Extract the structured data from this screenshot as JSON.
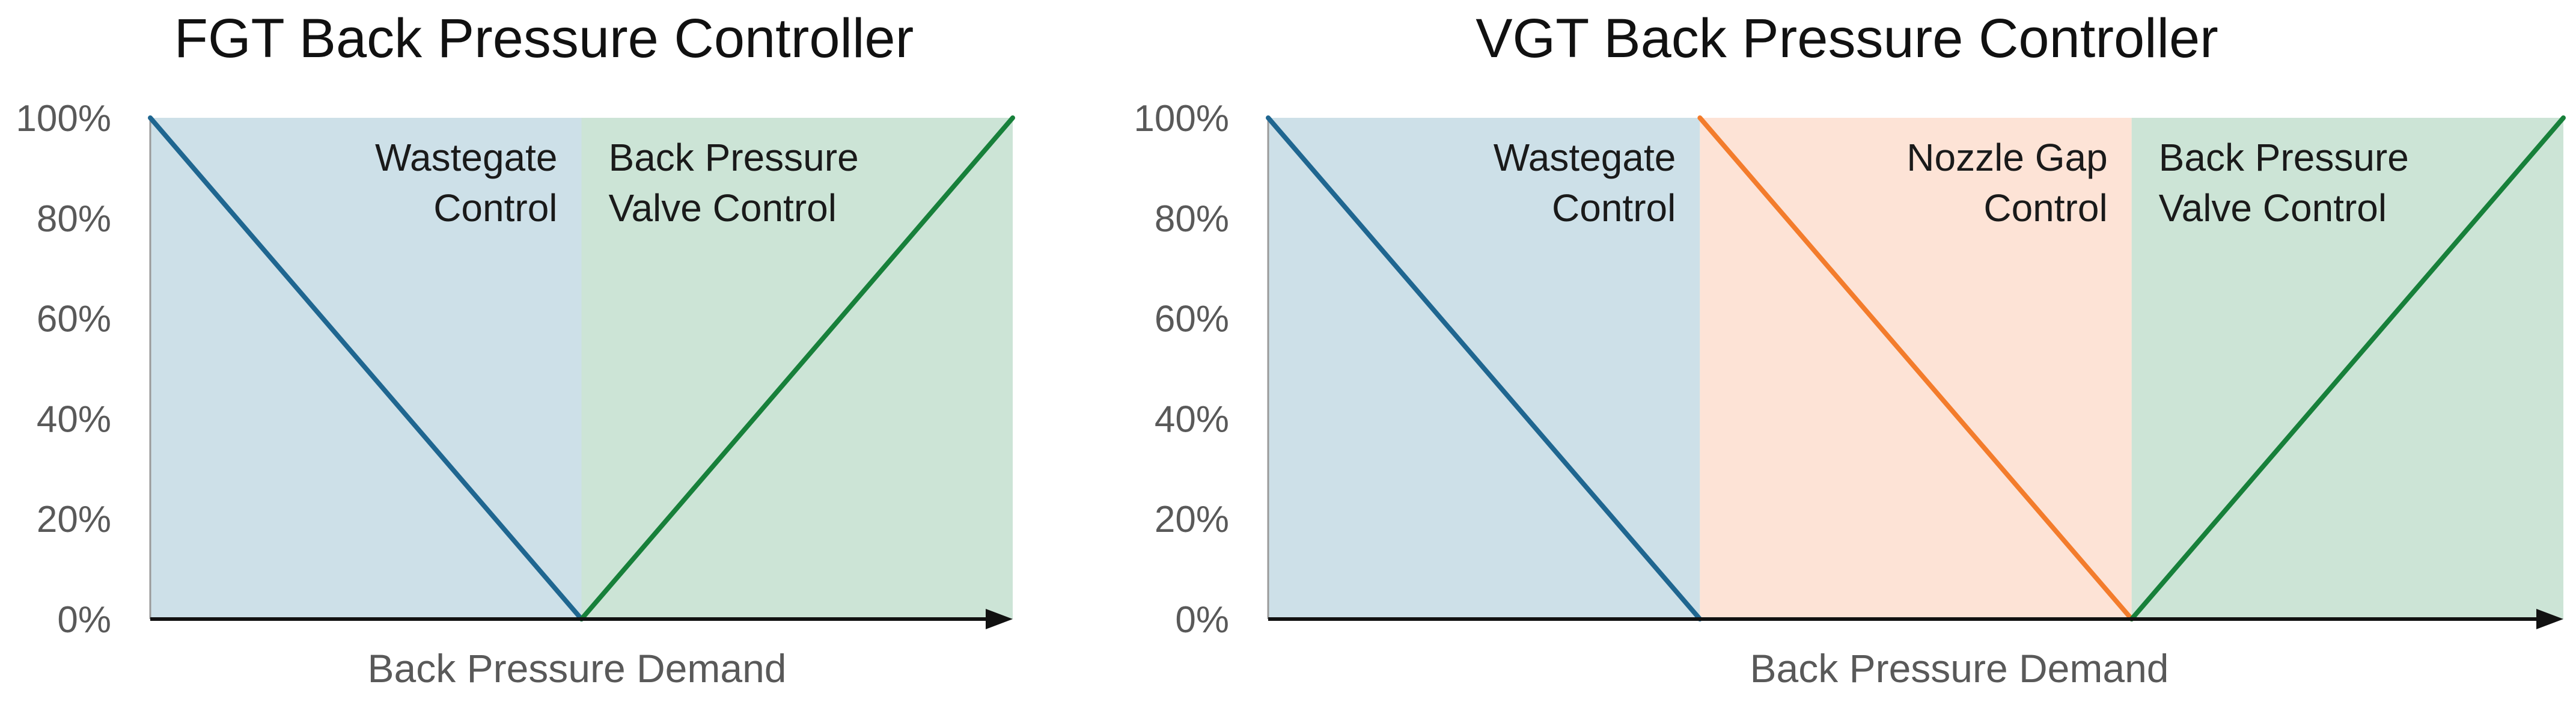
{
  "chart_data": [
    {
      "type": "line",
      "title": "FGT Back Pressure Controller",
      "xlabel": "Back Pressure Demand",
      "ylabel": "",
      "ylim": [
        0,
        100
      ],
      "xlim": [
        0,
        2
      ],
      "y_ticks": [
        "0%",
        "20%",
        "40%",
        "60%",
        "80%",
        "100%"
      ],
      "grid": false,
      "regions": [
        {
          "x": [
            0,
            1
          ],
          "label": [
            "Wastegate",
            "Control"
          ],
          "align": "right",
          "color": "#cde0e8"
        },
        {
          "x": [
            1,
            2
          ],
          "label": [
            "Back Pressure",
            "Valve Control"
          ],
          "align": "left",
          "color": "#cce4d6"
        }
      ],
      "series": [
        {
          "x": [
            0,
            1
          ],
          "y": [
            100,
            0
          ],
          "color": "#1f6690"
        },
        {
          "x": [
            1,
            2
          ],
          "y": [
            0,
            100
          ],
          "color": "#17803a"
        }
      ]
    },
    {
      "type": "line",
      "title": "VGT Back Pressure Controller",
      "xlabel": "Back Pressure Demand",
      "ylabel": "",
      "ylim": [
        0,
        100
      ],
      "xlim": [
        0,
        3
      ],
      "y_ticks": [
        "0%",
        "20%",
        "40%",
        "60%",
        "80%",
        "100%"
      ],
      "grid": false,
      "regions": [
        {
          "x": [
            0,
            1
          ],
          "label": [
            "Wastegate",
            "Control"
          ],
          "align": "right",
          "color": "#cde0e8"
        },
        {
          "x": [
            1,
            2
          ],
          "label": [
            "Nozzle Gap",
            "Control"
          ],
          "align": "right",
          "color": "#fde3d6"
        },
        {
          "x": [
            2,
            3
          ],
          "label": [
            "Back Pressure",
            "Valve Control"
          ],
          "align": "left",
          "color": "#cce4d6"
        }
      ],
      "series": [
        {
          "x": [
            0,
            1
          ],
          "y": [
            100,
            0
          ],
          "color": "#1f6690"
        },
        {
          "x": [
            1,
            2
          ],
          "y": [
            100,
            0
          ],
          "color": "#f37c2c"
        },
        {
          "x": [
            2,
            3
          ],
          "y": [
            0,
            100
          ],
          "color": "#17803a"
        }
      ]
    }
  ]
}
